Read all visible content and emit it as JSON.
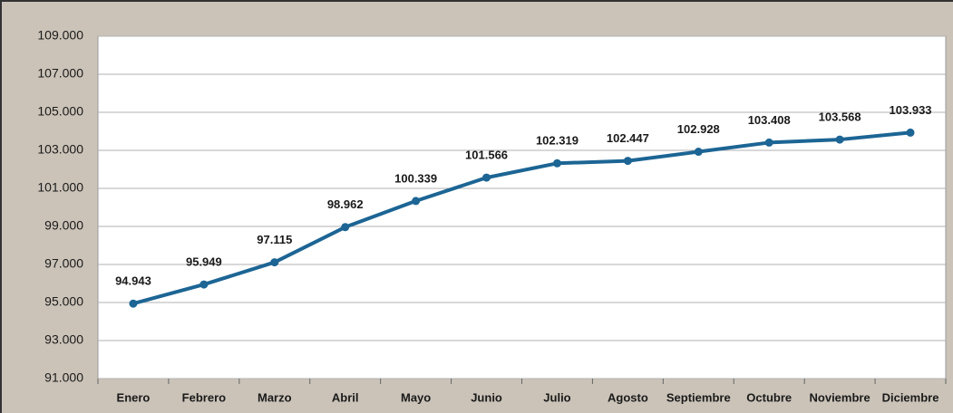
{
  "chart_data": {
    "type": "line",
    "categories": [
      "Enero",
      "Febrero",
      "Marzo",
      "Abril",
      "Mayo",
      "Junio",
      "Julio",
      "Agosto",
      "Septiembre",
      "Octubre",
      "Noviembre",
      "Diciembre"
    ],
    "values": [
      94943,
      95949,
      97115,
      98962,
      100339,
      101566,
      102319,
      102447,
      102928,
      103408,
      103568,
      103933
    ],
    "value_labels": [
      "94.943",
      "95.949",
      "97.115",
      "98.962",
      "100.339",
      "101.566",
      "102.319",
      "102.447",
      "102.928",
      "103.408",
      "103.568",
      "103.933"
    ],
    "color": "#1c6594",
    "ylim": [
      91000,
      109000
    ],
    "yticks": [
      {
        "value": 91000,
        "label": "91.000"
      },
      {
        "value": 93000,
        "label": "93.000"
      },
      {
        "value": 95000,
        "label": "95.000"
      },
      {
        "value": 97000,
        "label": "97.000"
      },
      {
        "value": 99000,
        "label": "99.000"
      },
      {
        "value": 101000,
        "label": "101.000"
      },
      {
        "value": 103000,
        "label": "103.000"
      },
      {
        "value": 105000,
        "label": "105.000"
      },
      {
        "value": 107000,
        "label": "107.000"
      },
      {
        "value": 109000,
        "label": "109.000"
      }
    ],
    "grid": true
  }
}
